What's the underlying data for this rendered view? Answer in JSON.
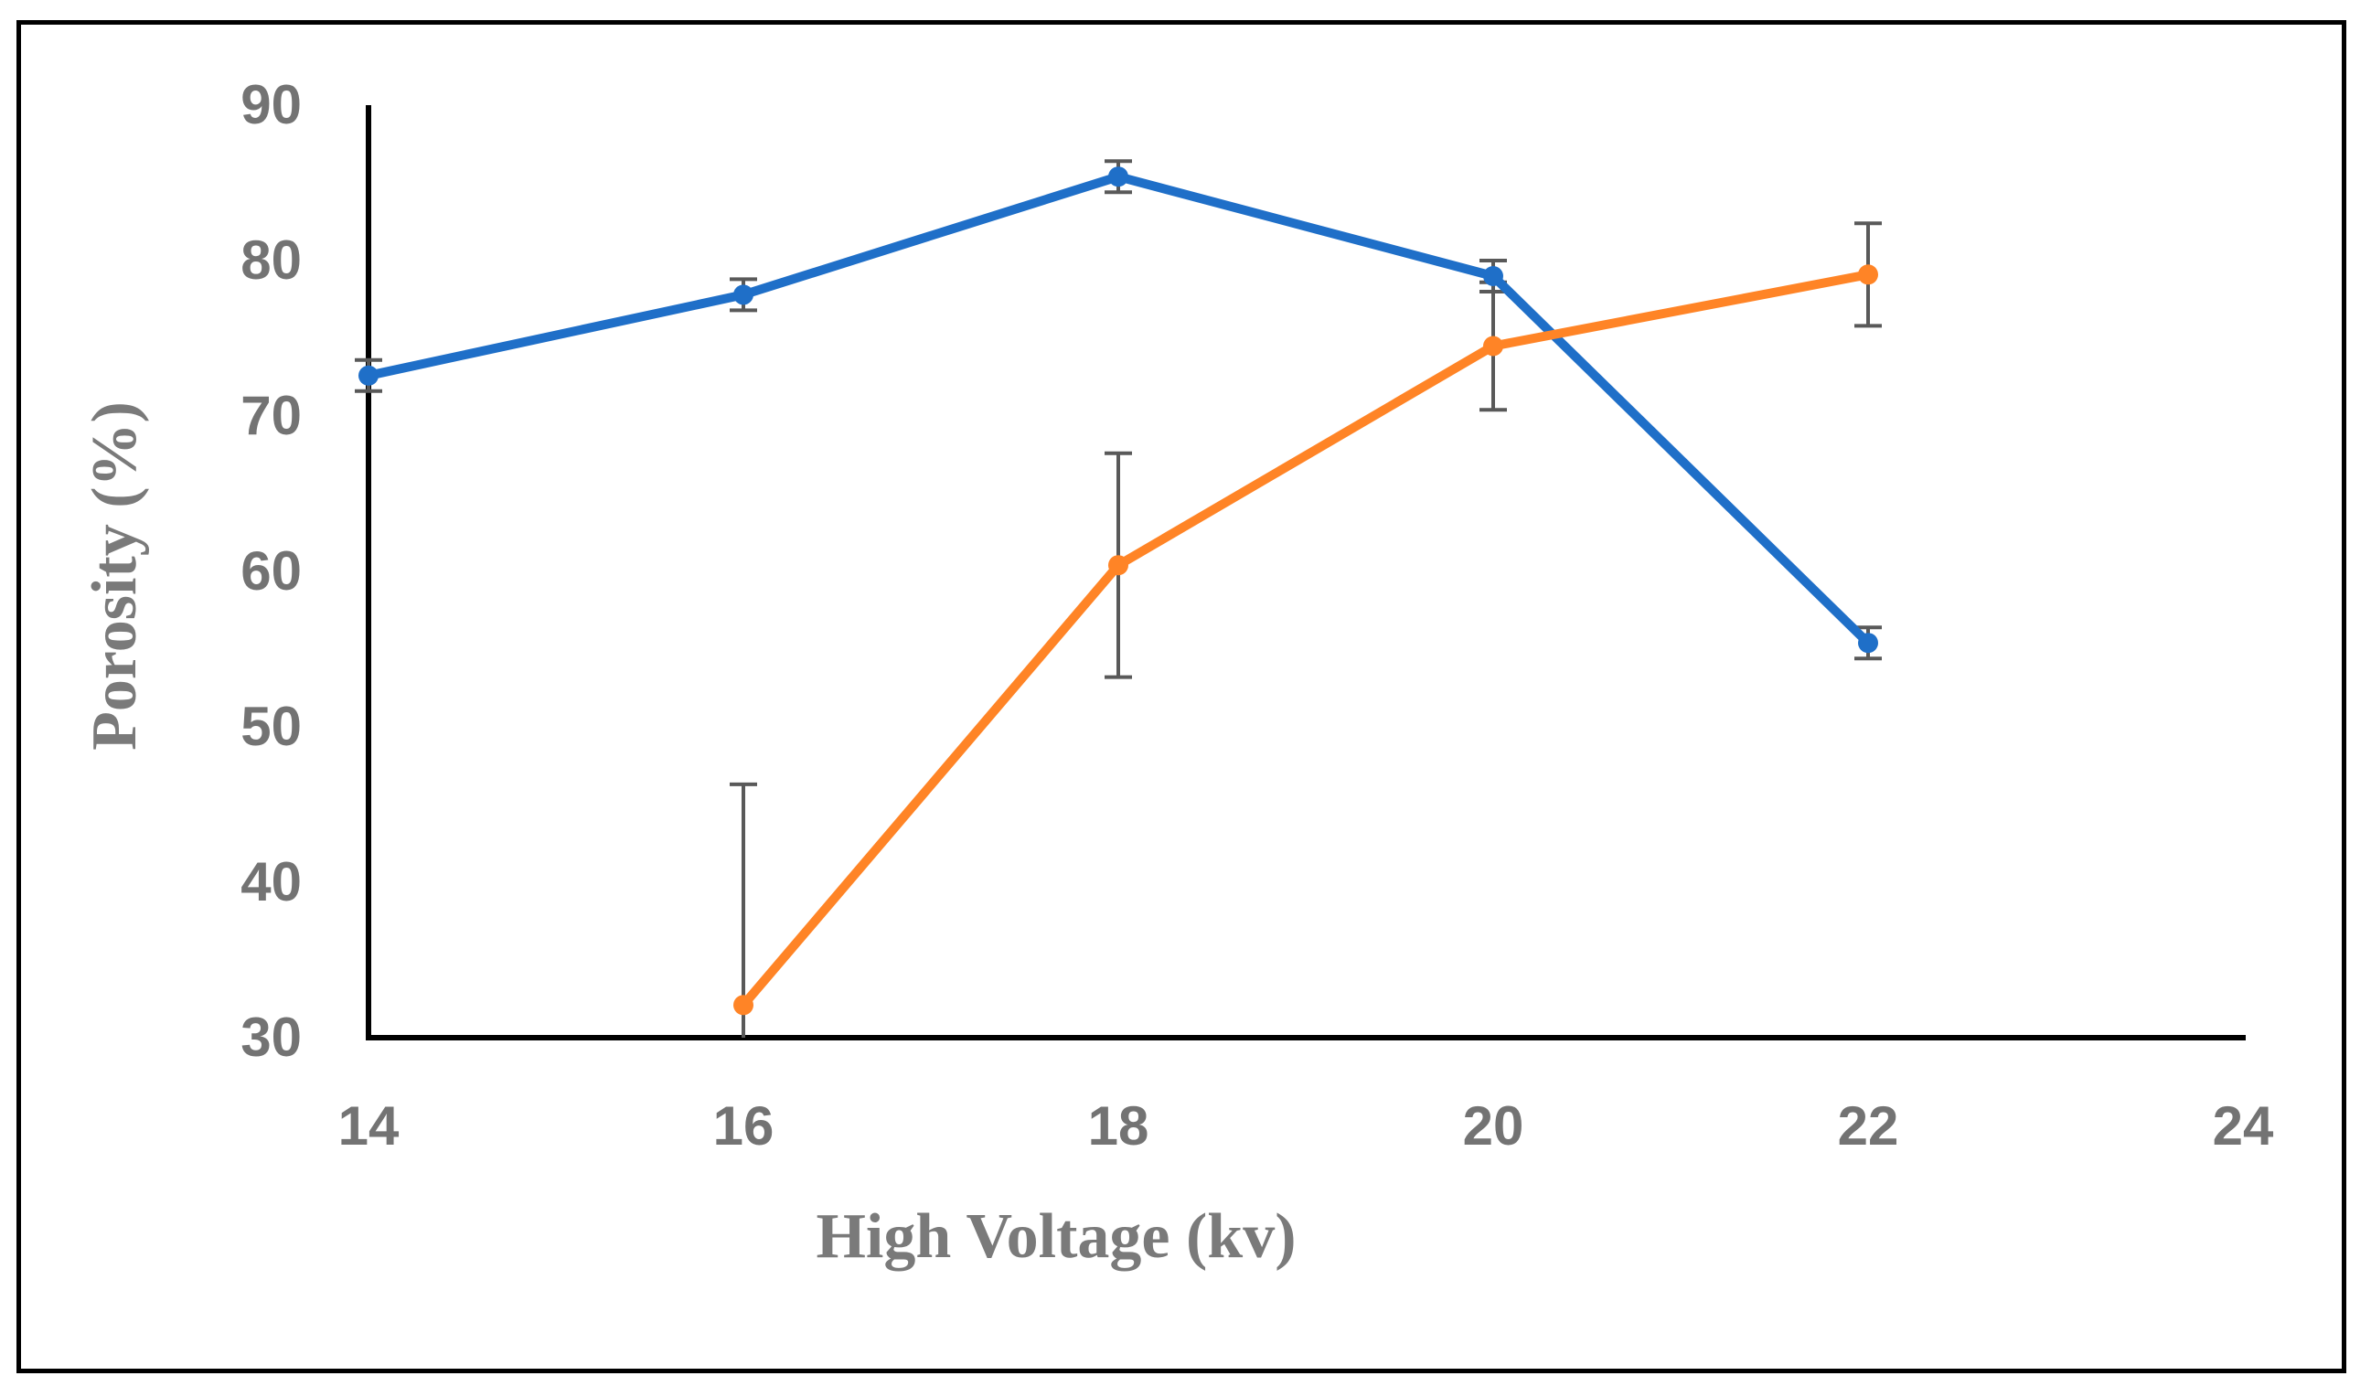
{
  "chart_data": {
    "type": "line",
    "title": "",
    "xlabel": "High Voltage (kv)",
    "ylabel": "Porosity  (%)",
    "xlim": [
      14,
      24
    ],
    "ylim": [
      30,
      90
    ],
    "x_ticks": [
      "14",
      "16",
      "18",
      "20",
      "22",
      "24"
    ],
    "y_ticks": [
      "30",
      "40",
      "50",
      "60",
      "70",
      "80",
      "90"
    ],
    "grid": false,
    "legend": "none",
    "series": [
      {
        "name": "series-blue",
        "color": "#1F6FC8",
        "x": [
          14,
          16,
          18,
          20,
          22
        ],
        "values": [
          72.6,
          77.8,
          85.4,
          79.0,
          55.4
        ],
        "error": [
          1.0,
          1.0,
          1.0,
          1.0,
          1.0
        ]
      },
      {
        "name": "series-orange",
        "color": "#FF8426",
        "x": [
          16,
          18,
          20,
          22
        ],
        "values": [
          32.1,
          60.4,
          74.5,
          79.1
        ],
        "error": [
          14.2,
          7.2,
          4.1,
          3.3
        ]
      }
    ],
    "error_bar_color": "#595959"
  }
}
